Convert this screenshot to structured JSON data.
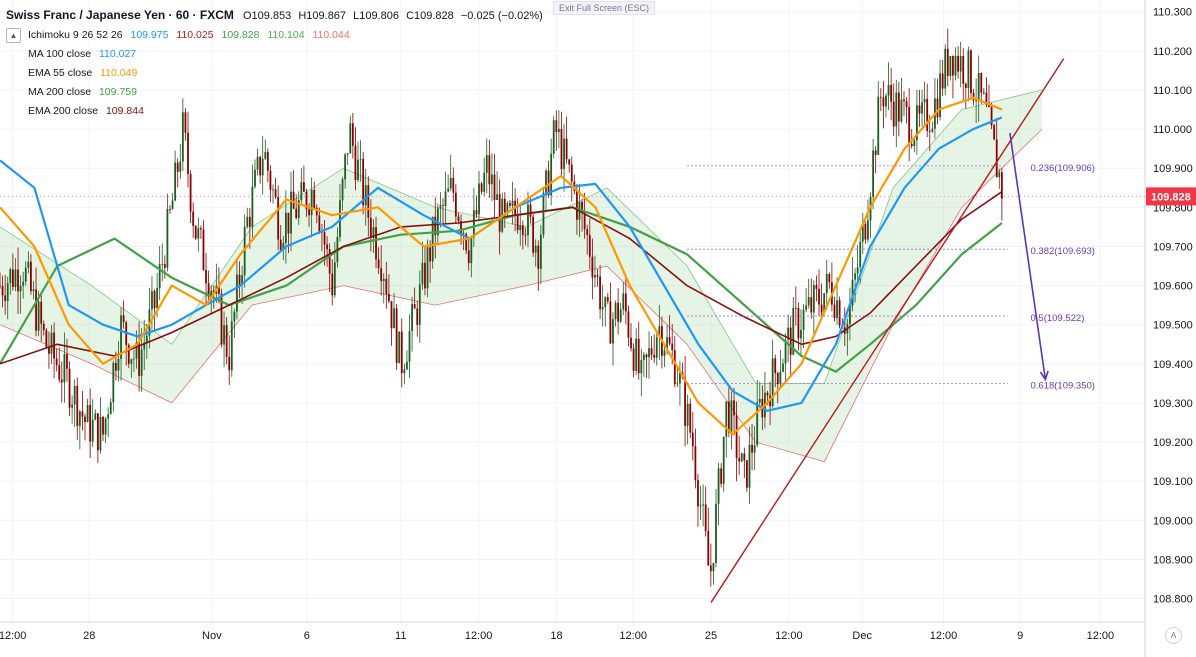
{
  "header": {
    "symbol_line": "Swiss Franc / Japanese Yen · 60 · FXCM",
    "ohlc": [
      {
        "label": "O",
        "value": "109.853"
      },
      {
        "label": "H",
        "value": "109.867"
      },
      {
        "label": "L",
        "value": "109.806"
      },
      {
        "label": "C",
        "value": "109.828"
      }
    ],
    "change": "−0.025 (−0.02%)",
    "exit_fullscreen": "Exit Full Screen (ESC)"
  },
  "indicators": {
    "ichimoku": {
      "label": "Ichimoku 9 26 52 26",
      "values": [
        "109.975",
        "110.025",
        "109.828",
        "110.104",
        "110.044"
      ],
      "colors": [
        "#2196f3",
        "#b71c1c",
        "#43a047",
        "#4caf50",
        "#e57373"
      ]
    },
    "ma100": {
      "label": "MA 100 close",
      "value": "110.027",
      "color": "#2196f3"
    },
    "ema55": {
      "label": "EMA 55 close",
      "value": "110.049",
      "color": "#ff9800"
    },
    "ma200": {
      "label": "MA 200 close",
      "value": "109.759",
      "color": "#43a047"
    },
    "ema200": {
      "label": "EMA 200 close",
      "value": "109.844",
      "color": "#880e0e"
    }
  },
  "chart_data": {
    "type": "candlestick",
    "title": "Swiss Franc / Japanese Yen · 60 · FXCM",
    "ylim": [
      108.74,
      110.33
    ],
    "y_ticks": [
      "110.300",
      "110.200",
      "110.100",
      "110.000",
      "109.900",
      "109.800",
      "109.700",
      "109.600",
      "109.500",
      "109.400",
      "109.300",
      "109.200",
      "109.100",
      "109.000",
      "108.900",
      "108.800"
    ],
    "x_ticks": [
      {
        "label": "12:00",
        "pos": 0.011
      },
      {
        "label": "28",
        "pos": 0.078
      },
      {
        "label": "Nov",
        "pos": 0.185
      },
      {
        "label": "6",
        "pos": 0.268
      },
      {
        "label": "11",
        "pos": 0.35
      },
      {
        "label": "12:00",
        "pos": 0.418
      },
      {
        "label": "18",
        "pos": 0.486
      },
      {
        "label": "12:00",
        "pos": 0.553
      },
      {
        "label": "25",
        "pos": 0.621
      },
      {
        "label": "12:00",
        "pos": 0.689
      },
      {
        "label": "Dec",
        "pos": 0.753
      },
      {
        "label": "12:00",
        "pos": 0.824
      },
      {
        "label": "9",
        "pos": 0.891
      },
      {
        "label": "12:00",
        "pos": 0.961
      }
    ],
    "last_price": {
      "value": "109.828",
      "y": 109.828,
      "color": "#f23645"
    },
    "fibonacci": [
      {
        "label": "0.236(109.906)",
        "y": 109.906
      },
      {
        "label": "0.382(109.693)",
        "y": 109.693
      },
      {
        "label": "0.5(109.522)",
        "y": 109.522
      },
      {
        "label": "0.618(109.350)",
        "y": 109.35
      }
    ],
    "trendline": [
      {
        "x": 0.621,
        "y": 108.79
      },
      {
        "x": 0.929,
        "y": 110.18
      }
    ],
    "forecast_arrow": [
      {
        "x": 0.882,
        "y": 109.99
      },
      {
        "x": 0.913,
        "y": 109.36
      }
    ],
    "close_path": [
      [
        0.0,
        109.6
      ],
      [
        0.02,
        109.65
      ],
      [
        0.04,
        109.45
      ],
      [
        0.06,
        109.35
      ],
      [
        0.075,
        109.25
      ],
      [
        0.09,
        109.22
      ],
      [
        0.105,
        109.5
      ],
      [
        0.12,
        109.4
      ],
      [
        0.135,
        109.55
      ],
      [
        0.15,
        109.8
      ],
      [
        0.16,
        110.0
      ],
      [
        0.17,
        109.75
      ],
      [
        0.185,
        109.6
      ],
      [
        0.2,
        109.42
      ],
      [
        0.215,
        109.75
      ],
      [
        0.23,
        109.95
      ],
      [
        0.245,
        109.75
      ],
      [
        0.26,
        109.8
      ],
      [
        0.275,
        109.85
      ],
      [
        0.29,
        109.6
      ],
      [
        0.305,
        110.0
      ],
      [
        0.32,
        109.8
      ],
      [
        0.335,
        109.65
      ],
      [
        0.35,
        109.4
      ],
      [
        0.365,
        109.55
      ],
      [
        0.38,
        109.75
      ],
      [
        0.395,
        109.85
      ],
      [
        0.41,
        109.7
      ],
      [
        0.425,
        109.9
      ],
      [
        0.44,
        109.75
      ],
      [
        0.455,
        109.8
      ],
      [
        0.47,
        109.7
      ],
      [
        0.485,
        110.0
      ],
      [
        0.5,
        109.85
      ],
      [
        0.515,
        109.7
      ],
      [
        0.53,
        109.5
      ],
      [
        0.545,
        109.55
      ],
      [
        0.56,
        109.35
      ],
      [
        0.575,
        109.5
      ],
      [
        0.59,
        109.4
      ],
      [
        0.605,
        109.2
      ],
      [
        0.62,
        108.85
      ],
      [
        0.635,
        109.3
      ],
      [
        0.65,
        109.1
      ],
      [
        0.665,
        109.3
      ],
      [
        0.68,
        109.4
      ],
      [
        0.695,
        109.5
      ],
      [
        0.71,
        109.55
      ],
      [
        0.725,
        109.6
      ],
      [
        0.74,
        109.5
      ],
      [
        0.755,
        109.75
      ],
      [
        0.77,
        110.1
      ],
      [
        0.785,
        110.05
      ],
      [
        0.8,
        110.0
      ],
      [
        0.815,
        110.05
      ],
      [
        0.83,
        110.2
      ],
      [
        0.845,
        110.15
      ],
      [
        0.86,
        110.05
      ],
      [
        0.875,
        109.85
      ]
    ],
    "ma100_path": [
      [
        0.0,
        109.92
      ],
      [
        0.03,
        109.85
      ],
      [
        0.06,
        109.55
      ],
      [
        0.09,
        109.5
      ],
      [
        0.12,
        109.47
      ],
      [
        0.15,
        109.5
      ],
      [
        0.18,
        109.55
      ],
      [
        0.21,
        109.6
      ],
      [
        0.25,
        109.7
      ],
      [
        0.29,
        109.75
      ],
      [
        0.33,
        109.85
      ],
      [
        0.37,
        109.78
      ],
      [
        0.41,
        109.72
      ],
      [
        0.45,
        109.8
      ],
      [
        0.49,
        109.85
      ],
      [
        0.52,
        109.86
      ],
      [
        0.55,
        109.75
      ],
      [
        0.58,
        109.6
      ],
      [
        0.61,
        109.45
      ],
      [
        0.64,
        109.33
      ],
      [
        0.67,
        109.28
      ],
      [
        0.7,
        109.3
      ],
      [
        0.73,
        109.45
      ],
      [
        0.76,
        109.7
      ],
      [
        0.79,
        109.85
      ],
      [
        0.82,
        109.95
      ],
      [
        0.85,
        110.0
      ],
      [
        0.875,
        110.03
      ]
    ],
    "ema55_path": [
      [
        0.0,
        109.8
      ],
      [
        0.03,
        109.7
      ],
      [
        0.06,
        109.5
      ],
      [
        0.09,
        109.4
      ],
      [
        0.12,
        109.45
      ],
      [
        0.15,
        109.6
      ],
      [
        0.18,
        109.55
      ],
      [
        0.21,
        109.68
      ],
      [
        0.25,
        109.82
      ],
      [
        0.29,
        109.78
      ],
      [
        0.33,
        109.8
      ],
      [
        0.37,
        109.7
      ],
      [
        0.41,
        109.72
      ],
      [
        0.45,
        109.8
      ],
      [
        0.49,
        109.88
      ],
      [
        0.52,
        109.8
      ],
      [
        0.55,
        109.6
      ],
      [
        0.58,
        109.45
      ],
      [
        0.61,
        109.3
      ],
      [
        0.64,
        109.22
      ],
      [
        0.67,
        109.3
      ],
      [
        0.7,
        109.4
      ],
      [
        0.73,
        109.6
      ],
      [
        0.76,
        109.8
      ],
      [
        0.79,
        109.95
      ],
      [
        0.82,
        110.05
      ],
      [
        0.85,
        110.08
      ],
      [
        0.875,
        110.05
      ]
    ],
    "ma200_path": [
      [
        0.0,
        109.4
      ],
      [
        0.05,
        109.65
      ],
      [
        0.1,
        109.72
      ],
      [
        0.15,
        109.62
      ],
      [
        0.2,
        109.55
      ],
      [
        0.25,
        109.6
      ],
      [
        0.3,
        109.7
      ],
      [
        0.35,
        109.73
      ],
      [
        0.4,
        109.74
      ],
      [
        0.45,
        109.78
      ],
      [
        0.5,
        109.8
      ],
      [
        0.55,
        109.75
      ],
      [
        0.6,
        109.68
      ],
      [
        0.65,
        109.55
      ],
      [
        0.7,
        109.42
      ],
      [
        0.73,
        109.38
      ],
      [
        0.76,
        109.45
      ],
      [
        0.8,
        109.55
      ],
      [
        0.84,
        109.68
      ],
      [
        0.875,
        109.76
      ]
    ],
    "ema200_path": [
      [
        0.0,
        109.4
      ],
      [
        0.05,
        109.45
      ],
      [
        0.1,
        109.42
      ],
      [
        0.15,
        109.48
      ],
      [
        0.2,
        109.55
      ],
      [
        0.25,
        109.62
      ],
      [
        0.3,
        109.7
      ],
      [
        0.35,
        109.75
      ],
      [
        0.4,
        109.76
      ],
      [
        0.45,
        109.78
      ],
      [
        0.5,
        109.8
      ],
      [
        0.55,
        109.72
      ],
      [
        0.6,
        109.6
      ],
      [
        0.65,
        109.52
      ],
      [
        0.7,
        109.45
      ],
      [
        0.73,
        109.47
      ],
      [
        0.76,
        109.53
      ],
      [
        0.8,
        109.65
      ],
      [
        0.84,
        109.77
      ],
      [
        0.875,
        109.84
      ]
    ],
    "cloud_upper": [
      [
        0.0,
        109.75
      ],
      [
        0.08,
        109.6
      ],
      [
        0.15,
        109.45
      ],
      [
        0.22,
        109.75
      ],
      [
        0.3,
        109.9
      ],
      [
        0.38,
        109.8
      ],
      [
        0.46,
        109.75
      ],
      [
        0.53,
        109.85
      ],
      [
        0.6,
        109.65
      ],
      [
        0.66,
        109.35
      ],
      [
        0.72,
        109.35
      ],
      [
        0.78,
        109.85
      ],
      [
        0.84,
        110.05
      ],
      [
        0.91,
        110.1
      ]
    ],
    "cloud_lower": [
      [
        0.0,
        109.5
      ],
      [
        0.08,
        109.4
      ],
      [
        0.15,
        109.3
      ],
      [
        0.22,
        109.55
      ],
      [
        0.3,
        109.6
      ],
      [
        0.38,
        109.55
      ],
      [
        0.46,
        109.6
      ],
      [
        0.53,
        109.65
      ],
      [
        0.6,
        109.45
      ],
      [
        0.66,
        109.2
      ],
      [
        0.72,
        109.15
      ],
      [
        0.78,
        109.5
      ],
      [
        0.84,
        109.8
      ],
      [
        0.91,
        110.0
      ]
    ]
  }
}
